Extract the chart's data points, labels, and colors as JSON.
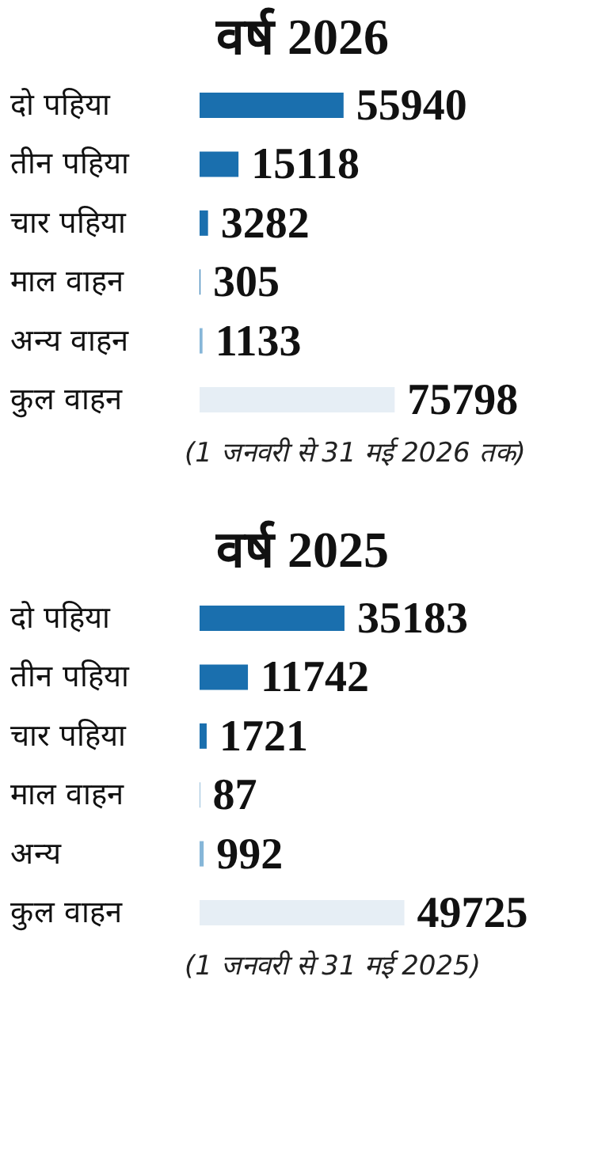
{
  "chart_data": [
    {
      "type": "bar",
      "orientation": "horizontal",
      "title": "वर्ष 2026",
      "categories": [
        "दो पहिया",
        "तीन पहिया",
        "चार पहिया",
        "माल वाहन",
        "अन्य वाहन",
        "कुल वाहन"
      ],
      "values": [
        55940,
        15118,
        3282,
        305,
        1133,
        75798
      ],
      "colors": [
        "#1a6fae",
        "#1a6fae",
        "#1a6fae",
        "#1a6fae",
        "#86b6d8",
        "#e6eef5"
      ],
      "data_labels": true,
      "tick_labels": "y",
      "annotations": [
        "(1 जनवरी से 31 मई 2026 तक)"
      ]
    },
    {
      "type": "bar",
      "orientation": "horizontal",
      "title": "वर्ष 2025",
      "categories": [
        "दो पहिया",
        "तीन पहिया",
        "चार पहिया",
        "माल वाहन",
        "अन्य",
        "कुल वाहन"
      ],
      "values": [
        35183,
        11742,
        1721,
        87,
        992,
        49725
      ],
      "colors": [
        "#1a6fae",
        "#1a6fae",
        "#1a6fae",
        "#1a6fae",
        "#86b6d8",
        "#e6eef5"
      ],
      "data_labels": true,
      "tick_labels": "y",
      "annotations": [
        "(1 जनवरी से 31 मई 2025)"
      ]
    }
  ]
}
